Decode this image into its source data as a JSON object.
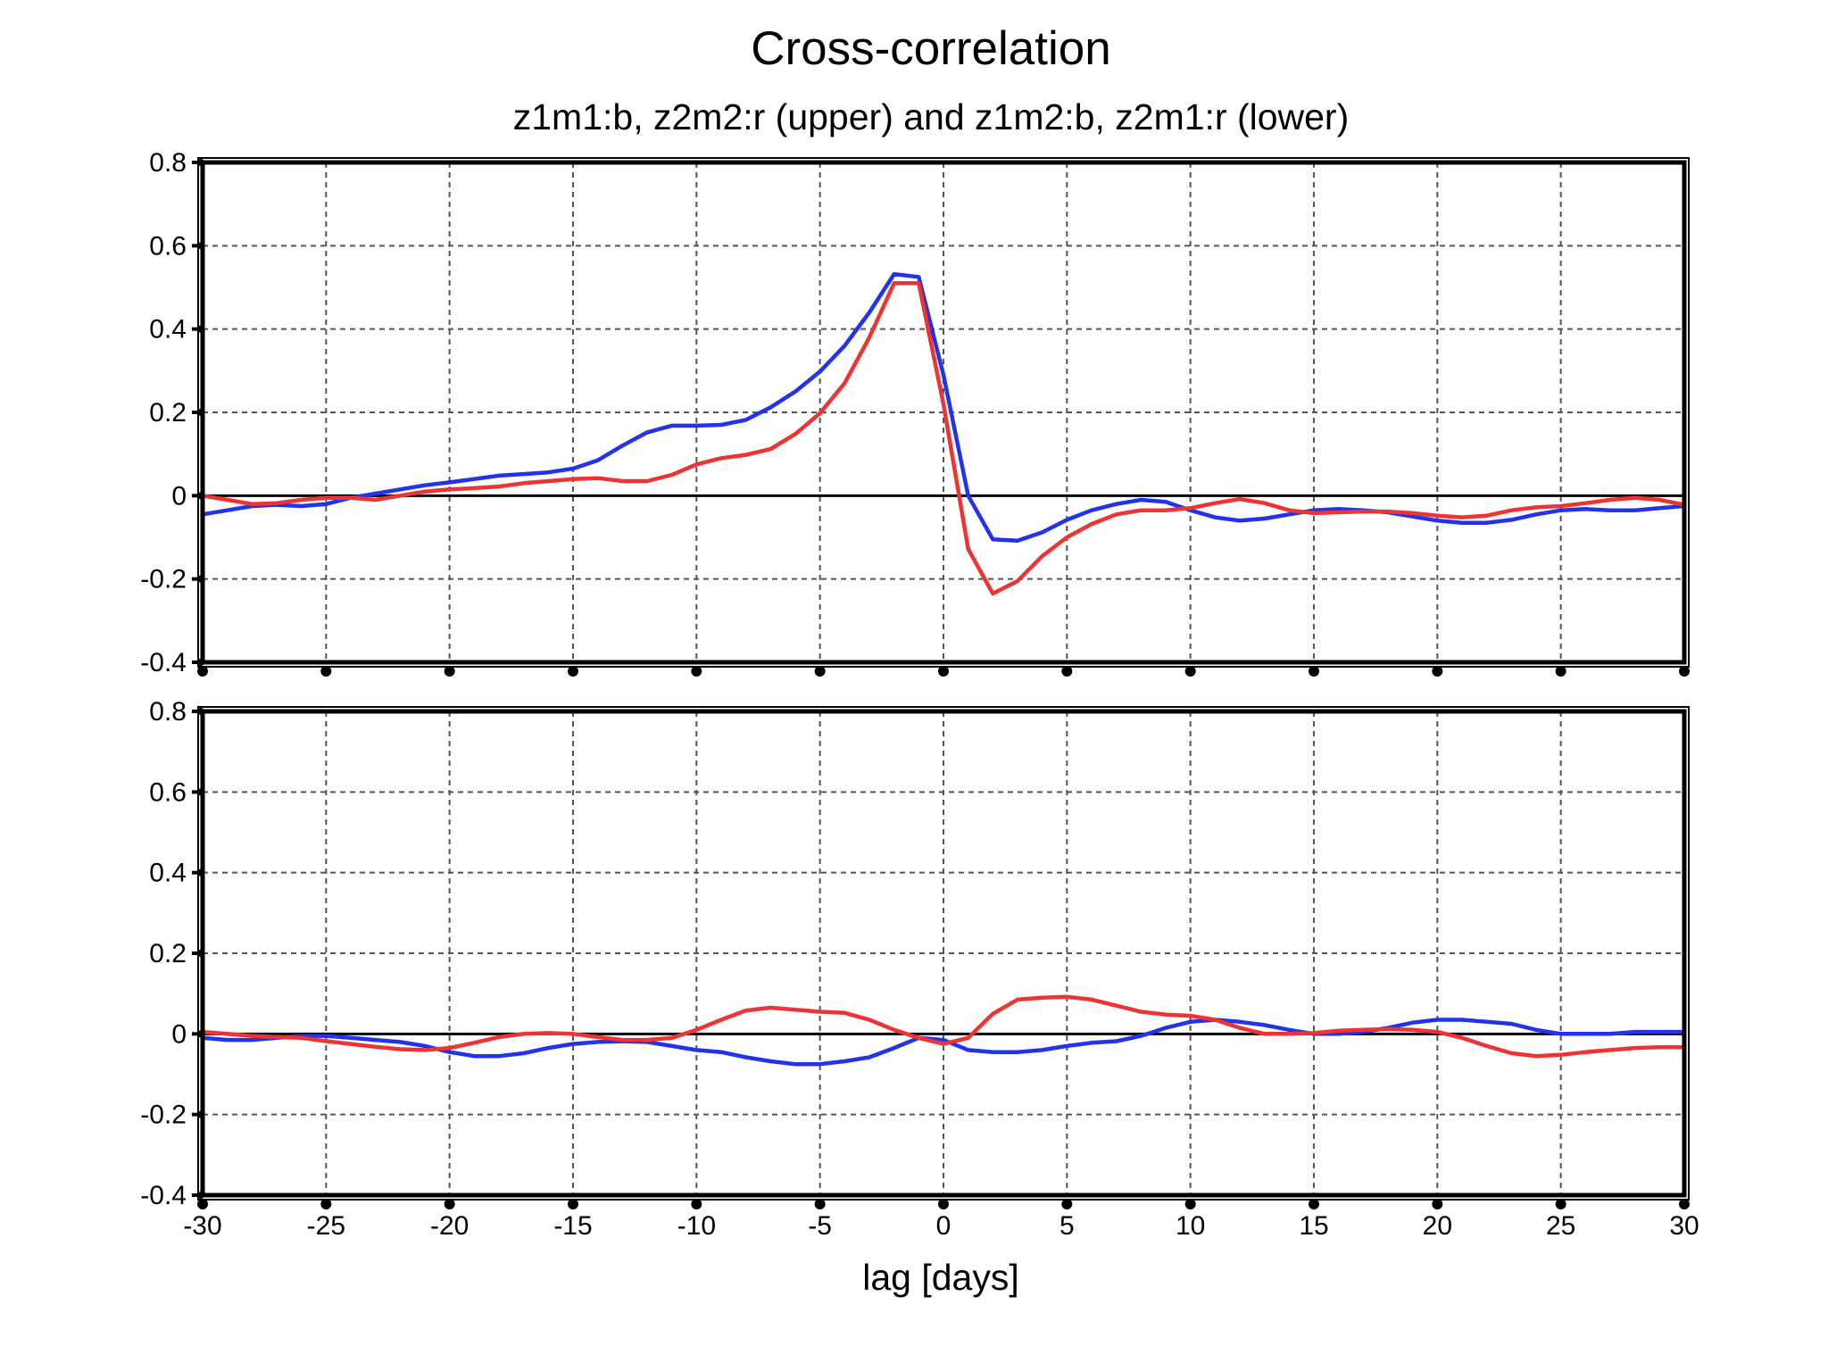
{
  "chart_data": [
    {
      "type": "line",
      "panel": "upper",
      "title": "Cross-correlation",
      "subtitle": "z1m1:b, z2m2:r (upper) and z1m2:b, z2m1:r (lower)",
      "xlabel": "",
      "ylabel": "",
      "xlim": [
        -30,
        30
      ],
      "ylim": [
        -0.4,
        0.8
      ],
      "xticks": [
        -30,
        -25,
        -20,
        -15,
        -10,
        -5,
        0,
        5,
        10,
        15,
        20,
        25,
        30
      ],
      "xtick_labels": [
        "-30",
        "-25",
        "-20",
        "-15",
        "-10",
        "-5",
        "0",
        "5",
        "10",
        "15",
        "20",
        "25",
        "30"
      ],
      "yticks": [
        -0.4,
        -0.2,
        0,
        0.2,
        0.4,
        0.6,
        0.8
      ],
      "ytick_labels": [
        "-0.4",
        "-0.2",
        "0",
        "0.2",
        "0.4",
        "0.6",
        "0.8"
      ],
      "grid": true,
      "zero_line": true,
      "x": [
        -30,
        -29,
        -28,
        -27,
        -26,
        -25,
        -24,
        -23,
        -22,
        -21,
        -20,
        -19,
        -18,
        -17,
        -16,
        -15,
        -14,
        -13,
        -12,
        -11,
        -10,
        -9,
        -8,
        -7,
        -6,
        -5,
        -4,
        -3,
        -2,
        -1,
        0,
        1,
        2,
        3,
        4,
        5,
        6,
        7,
        8,
        9,
        10,
        11,
        12,
        13,
        14,
        15,
        16,
        17,
        18,
        19,
        20,
        21,
        22,
        23,
        24,
        25,
        26,
        27,
        28,
        29,
        30
      ],
      "series": [
        {
          "color": "#2233ee",
          "values": [
            -0.045,
            -0.035,
            -0.025,
            -0.022,
            -0.025,
            -0.02,
            -0.005,
            0.005,
            0.015,
            0.025,
            0.032,
            0.04,
            0.048,
            0.052,
            0.056,
            0.065,
            0.085,
            0.12,
            0.152,
            0.168,
            0.168,
            0.17,
            0.182,
            0.212,
            0.25,
            0.298,
            0.36,
            0.44,
            0.532,
            0.525,
            0.29,
            0.0,
            -0.105,
            -0.108,
            -0.088,
            -0.058,
            -0.035,
            -0.02,
            -0.01,
            -0.015,
            -0.035,
            -0.052,
            -0.06,
            -0.055,
            -0.045,
            -0.035,
            -0.032,
            -0.035,
            -0.04,
            -0.05,
            -0.06,
            -0.065,
            -0.065,
            -0.058,
            -0.045,
            -0.035,
            -0.032,
            -0.035,
            -0.035,
            -0.03,
            -0.025
          ]
        },
        {
          "color": "#ee3333",
          "values": [
            0.0,
            -0.01,
            -0.02,
            -0.018,
            -0.01,
            -0.005,
            -0.005,
            -0.01,
            0.0,
            0.01,
            0.015,
            0.018,
            0.022,
            0.03,
            0.035,
            0.04,
            0.042,
            0.035,
            0.035,
            0.05,
            0.075,
            0.09,
            0.098,
            0.112,
            0.148,
            0.198,
            0.27,
            0.38,
            0.51,
            0.51,
            0.22,
            -0.128,
            -0.235,
            -0.205,
            -0.145,
            -0.1,
            -0.068,
            -0.045,
            -0.035,
            -0.035,
            -0.03,
            -0.018,
            -0.008,
            -0.018,
            -0.035,
            -0.042,
            -0.04,
            -0.038,
            -0.038,
            -0.042,
            -0.048,
            -0.052,
            -0.048,
            -0.035,
            -0.028,
            -0.025,
            -0.018,
            -0.01,
            -0.005,
            -0.01,
            -0.022
          ]
        }
      ]
    },
    {
      "type": "line",
      "panel": "lower",
      "xlabel": "lag [days]",
      "ylabel": "",
      "xlim": [
        -30,
        30
      ],
      "ylim": [
        -0.4,
        0.8
      ],
      "xticks": [
        -30,
        -25,
        -20,
        -15,
        -10,
        -5,
        0,
        5,
        10,
        15,
        20,
        25,
        30
      ],
      "xtick_labels": [
        "-30",
        "-25",
        "-20",
        "-15",
        "-10",
        "-5",
        "0",
        "5",
        "10",
        "15",
        "20",
        "25",
        "30"
      ],
      "yticks": [
        -0.4,
        -0.2,
        0,
        0.2,
        0.4,
        0.6,
        0.8
      ],
      "ytick_labels": [
        "-0.4",
        "-0.2",
        "0",
        "0.2",
        "0.4",
        "0.6",
        "0.8"
      ],
      "grid": true,
      "zero_line": true,
      "x": [
        -30,
        -29,
        -28,
        -27,
        -26,
        -25,
        -24,
        -23,
        -22,
        -21,
        -20,
        -19,
        -18,
        -17,
        -16,
        -15,
        -14,
        -13,
        -12,
        -11,
        -10,
        -9,
        -8,
        -7,
        -6,
        -5,
        -4,
        -3,
        -2,
        -1,
        0,
        1,
        2,
        3,
        4,
        5,
        6,
        7,
        8,
        9,
        10,
        11,
        12,
        13,
        14,
        15,
        16,
        17,
        18,
        19,
        20,
        21,
        22,
        23,
        24,
        25,
        26,
        27,
        28,
        29,
        30
      ],
      "series": [
        {
          "color": "#2233ee",
          "values": [
            -0.01,
            -0.015,
            -0.015,
            -0.01,
            -0.005,
            -0.005,
            -0.01,
            -0.015,
            -0.02,
            -0.03,
            -0.045,
            -0.055,
            -0.055,
            -0.048,
            -0.035,
            -0.025,
            -0.02,
            -0.018,
            -0.02,
            -0.03,
            -0.04,
            -0.045,
            -0.058,
            -0.068,
            -0.075,
            -0.075,
            -0.068,
            -0.058,
            -0.035,
            -0.01,
            -0.015,
            -0.04,
            -0.045,
            -0.045,
            -0.04,
            -0.03,
            -0.022,
            -0.018,
            -0.005,
            0.015,
            0.03,
            0.035,
            0.03,
            0.022,
            0.01,
            0.0,
            0.0,
            0.005,
            0.015,
            0.028,
            0.035,
            0.035,
            0.03,
            0.025,
            0.01,
            0.0,
            0.0,
            0.0,
            0.005,
            0.005,
            0.005
          ]
        },
        {
          "color": "#ee3333",
          "values": [
            0.005,
            0.0,
            -0.005,
            -0.008,
            -0.01,
            -0.018,
            -0.025,
            -0.032,
            -0.038,
            -0.04,
            -0.035,
            -0.022,
            -0.008,
            0.0,
            0.002,
            0.0,
            -0.008,
            -0.015,
            -0.015,
            -0.01,
            0.01,
            0.035,
            0.058,
            0.065,
            0.06,
            0.055,
            0.052,
            0.035,
            0.01,
            -0.01,
            -0.025,
            -0.01,
            0.05,
            0.085,
            0.09,
            0.092,
            0.085,
            0.07,
            0.055,
            0.048,
            0.045,
            0.035,
            0.015,
            0.0,
            0.0,
            0.002,
            0.008,
            0.01,
            0.012,
            0.01,
            0.005,
            -0.01,
            -0.03,
            -0.048,
            -0.055,
            -0.052,
            -0.045,
            -0.04,
            -0.035,
            -0.033,
            -0.033
          ]
        }
      ]
    }
  ]
}
